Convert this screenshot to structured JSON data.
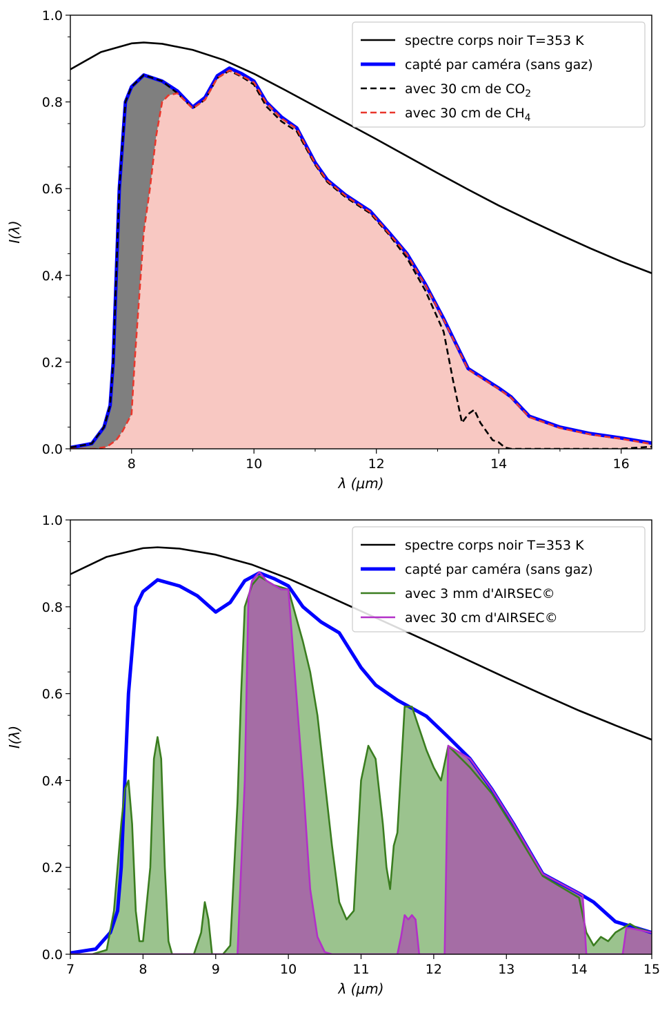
{
  "chart_data": [
    {
      "type": "area",
      "xlabel": "λ (μm)",
      "ylabel": "I(λ)",
      "xlim": [
        7,
        16.5
      ],
      "ylim": [
        0,
        1.0
      ],
      "xticks": [
        8,
        10,
        12,
        14,
        16
      ],
      "yticks": [
        0.0,
        0.2,
        0.4,
        0.6,
        0.8,
        1.0
      ],
      "legend_position": "top-right",
      "series": [
        {
          "name": "spectre corps noir T=353 K",
          "kind": "line",
          "color": "#000000",
          "dash": "solid",
          "x": [
            7.0,
            7.5,
            8.0,
            8.2,
            8.5,
            9.0,
            9.5,
            10.0,
            10.5,
            11.0,
            11.5,
            12.0,
            12.5,
            13.0,
            13.5,
            14.0,
            14.5,
            15.0,
            15.5,
            16.0,
            16.5
          ],
          "y": [
            0.875,
            0.915,
            0.935,
            0.937,
            0.934,
            0.92,
            0.897,
            0.865,
            0.828,
            0.79,
            0.752,
            0.714,
            0.675,
            0.636,
            0.598,
            0.561,
            0.527,
            0.494,
            0.462,
            0.432,
            0.405
          ]
        },
        {
          "name": "capté par caméra (sans gaz)",
          "kind": "line",
          "color": "#0000ff",
          "dash": "solid",
          "x": [
            7.0,
            7.35,
            7.55,
            7.65,
            7.7,
            7.75,
            7.8,
            7.9,
            8.0,
            8.2,
            8.5,
            8.75,
            9.0,
            9.2,
            9.4,
            9.6,
            9.8,
            10.0,
            10.2,
            10.45,
            10.7,
            11.0,
            11.2,
            11.5,
            11.9,
            12.2,
            12.5,
            12.8,
            13.1,
            13.5,
            14.0,
            14.2,
            14.5,
            15.0,
            15.5,
            16.0,
            16.5
          ],
          "y": [
            0.003,
            0.012,
            0.05,
            0.1,
            0.2,
            0.4,
            0.6,
            0.8,
            0.835,
            0.862,
            0.848,
            0.825,
            0.788,
            0.81,
            0.86,
            0.878,
            0.865,
            0.848,
            0.8,
            0.765,
            0.74,
            0.66,
            0.62,
            0.585,
            0.548,
            0.5,
            0.45,
            0.38,
            0.3,
            0.185,
            0.14,
            0.12,
            0.075,
            0.05,
            0.035,
            0.025,
            0.013
          ]
        },
        {
          "name": "avec 30 cm de CO₂",
          "kind": "line+fill",
          "color": "#000000",
          "dash": "dashed",
          "fill": "#7f7f7f",
          "x": [
            7.0,
            7.35,
            7.55,
            7.65,
            7.7,
            7.75,
            7.8,
            7.9,
            8.0,
            8.2,
            8.5,
            8.75,
            9.0,
            9.2,
            9.4,
            9.6,
            9.8,
            10.0,
            10.2,
            10.45,
            10.7,
            11.0,
            11.2,
            11.5,
            11.9,
            12.2,
            12.5,
            12.8,
            13.1,
            13.25,
            13.4,
            13.5,
            13.6,
            13.7,
            13.8,
            13.9,
            14.0,
            14.1,
            14.2,
            14.5,
            15.0,
            15.5,
            16.0,
            16.5
          ],
          "y": [
            0.003,
            0.012,
            0.05,
            0.1,
            0.2,
            0.4,
            0.6,
            0.8,
            0.835,
            0.862,
            0.848,
            0.82,
            0.785,
            0.805,
            0.855,
            0.872,
            0.858,
            0.84,
            0.79,
            0.755,
            0.732,
            0.655,
            0.615,
            0.58,
            0.543,
            0.495,
            0.44,
            0.365,
            0.27,
            0.16,
            0.06,
            0.08,
            0.09,
            0.06,
            0.04,
            0.02,
            0.015,
            0.003,
            0.0,
            0.0,
            0.0,
            0.0,
            0.0,
            0.005
          ]
        },
        {
          "name": "avec 30 cm de CH₄",
          "kind": "line+fill",
          "color": "#e8372c",
          "dash": "dashed",
          "fill": "#f8c8c2",
          "x": [
            7.0,
            7.4,
            7.6,
            7.75,
            7.85,
            8.0,
            8.05,
            8.1,
            8.15,
            8.2,
            8.3,
            8.4,
            8.5,
            8.6,
            8.75,
            9.0,
            9.2,
            9.4,
            9.6,
            9.8,
            10.0,
            10.2,
            10.45,
            10.7,
            11.0,
            11.2,
            11.5,
            11.9,
            12.2,
            12.5,
            12.8,
            13.1,
            13.5,
            14.0,
            14.2,
            14.5,
            15.0,
            15.5,
            16.0,
            16.5
          ],
          "y": [
            0.0,
            0.0,
            0.005,
            0.02,
            0.04,
            0.08,
            0.2,
            0.3,
            0.4,
            0.5,
            0.6,
            0.72,
            0.8,
            0.815,
            0.82,
            0.785,
            0.805,
            0.855,
            0.873,
            0.86,
            0.845,
            0.798,
            0.762,
            0.738,
            0.658,
            0.618,
            0.583,
            0.546,
            0.498,
            0.448,
            0.378,
            0.298,
            0.183,
            0.138,
            0.118,
            0.073,
            0.048,
            0.033,
            0.023,
            0.011
          ]
        }
      ],
      "legend": [
        "spectre corps noir T=353 K",
        "capté par caméra (sans gaz)",
        "avec 30 cm de CO₂",
        "avec 30 cm de CH₄"
      ]
    },
    {
      "type": "area",
      "xlabel": "λ (μm)",
      "ylabel": "I(λ)",
      "xlim": [
        7,
        15
      ],
      "ylim": [
        0,
        1.0
      ],
      "xticks": [
        7,
        8,
        9,
        10,
        11,
        12,
        13,
        14,
        15
      ],
      "yticks": [
        0.0,
        0.2,
        0.4,
        0.6,
        0.8,
        1.0
      ],
      "legend_position": "top-right",
      "series": [
        {
          "name": "spectre corps noir T=353 K",
          "kind": "line",
          "color": "#000000",
          "dash": "solid",
          "x": [
            7.0,
            7.5,
            8.0,
            8.2,
            8.5,
            9.0,
            9.5,
            10.0,
            10.5,
            11.0,
            11.5,
            12.0,
            12.5,
            13.0,
            13.5,
            14.0,
            14.5,
            15.0
          ],
          "y": [
            0.875,
            0.915,
            0.935,
            0.937,
            0.934,
            0.92,
            0.897,
            0.865,
            0.828,
            0.79,
            0.752,
            0.714,
            0.675,
            0.636,
            0.598,
            0.561,
            0.527,
            0.494
          ]
        },
        {
          "name": "capté par caméra (sans gaz)",
          "kind": "line",
          "color": "#0000ff",
          "dash": "solid",
          "x": [
            7.0,
            7.35,
            7.55,
            7.65,
            7.7,
            7.75,
            7.8,
            7.9,
            8.0,
            8.2,
            8.5,
            8.75,
            9.0,
            9.2,
            9.4,
            9.6,
            9.8,
            10.0,
            10.2,
            10.45,
            10.7,
            11.0,
            11.2,
            11.5,
            11.9,
            12.2,
            12.5,
            12.8,
            13.1,
            13.5,
            14.0,
            14.2,
            14.5,
            15.0
          ],
          "y": [
            0.003,
            0.012,
            0.05,
            0.1,
            0.2,
            0.4,
            0.6,
            0.8,
            0.835,
            0.862,
            0.848,
            0.825,
            0.788,
            0.81,
            0.86,
            0.878,
            0.865,
            0.848,
            0.8,
            0.765,
            0.74,
            0.66,
            0.62,
            0.585,
            0.548,
            0.5,
            0.45,
            0.38,
            0.3,
            0.185,
            0.14,
            0.12,
            0.075,
            0.05
          ]
        },
        {
          "name": "avec 3 mm d'AIRSEC©",
          "kind": "line+fill",
          "color": "#3a7d1f",
          "dash": "solid",
          "fill": "#9bc38e",
          "x": [
            7.0,
            7.3,
            7.5,
            7.6,
            7.7,
            7.75,
            7.8,
            7.85,
            7.9,
            7.95,
            8.0,
            8.1,
            8.15,
            8.2,
            8.25,
            8.3,
            8.35,
            8.4,
            8.5,
            8.7,
            8.8,
            8.85,
            8.9,
            8.95,
            9.0,
            9.1,
            9.2,
            9.3,
            9.35,
            9.4,
            9.5,
            9.6,
            9.7,
            9.8,
            9.9,
            10.0,
            10.1,
            10.2,
            10.3,
            10.4,
            10.5,
            10.6,
            10.7,
            10.8,
            10.9,
            11.0,
            11.1,
            11.2,
            11.3,
            11.35,
            11.4,
            11.45,
            11.5,
            11.6,
            11.7,
            11.8,
            11.9,
            12.0,
            12.1,
            12.2,
            12.5,
            12.8,
            13.1,
            13.5,
            14.0,
            14.1,
            14.2,
            14.3,
            14.4,
            14.5,
            14.6,
            14.7,
            14.8,
            15.0
          ],
          "y": [
            0.0,
            0.0,
            0.01,
            0.1,
            0.3,
            0.38,
            0.4,
            0.3,
            0.1,
            0.03,
            0.03,
            0.2,
            0.45,
            0.5,
            0.45,
            0.2,
            0.03,
            0.0,
            0.0,
            0.0,
            0.05,
            0.12,
            0.08,
            0.0,
            0.0,
            0.0,
            0.02,
            0.35,
            0.6,
            0.8,
            0.85,
            0.87,
            0.86,
            0.85,
            0.845,
            0.84,
            0.78,
            0.72,
            0.65,
            0.55,
            0.4,
            0.25,
            0.12,
            0.08,
            0.1,
            0.4,
            0.48,
            0.45,
            0.3,
            0.2,
            0.15,
            0.25,
            0.28,
            0.57,
            0.57,
            0.52,
            0.47,
            0.43,
            0.4,
            0.48,
            0.43,
            0.37,
            0.29,
            0.18,
            0.13,
            0.05,
            0.02,
            0.04,
            0.03,
            0.05,
            0.06,
            0.07,
            0.06,
            0.05
          ]
        },
        {
          "name": "avec 30 cm d'AIRSEC©",
          "kind": "line+fill",
          "color": "#b230c8",
          "dash": "solid",
          "fill": "#a56da5",
          "x": [
            7.0,
            9.3,
            9.4,
            9.45,
            9.5,
            9.6,
            9.7,
            9.8,
            9.9,
            10.0,
            10.1,
            10.2,
            10.3,
            10.4,
            10.5,
            10.6,
            10.7,
            11.5,
            11.55,
            11.6,
            11.65,
            11.7,
            11.75,
            11.8,
            11.85,
            12.15,
            12.2,
            12.3,
            12.5,
            12.8,
            13.1,
            13.5,
            14.0,
            14.05,
            14.1,
            14.6,
            14.65,
            14.7,
            15.0
          ],
          "y": [
            0.0,
            0.0,
            0.4,
            0.82,
            0.86,
            0.88,
            0.86,
            0.85,
            0.84,
            0.84,
            0.62,
            0.4,
            0.15,
            0.04,
            0.005,
            0.0,
            0.0,
            0.0,
            0.04,
            0.09,
            0.08,
            0.09,
            0.08,
            0.0,
            0.0,
            0.0,
            0.48,
            0.47,
            0.45,
            0.38,
            0.3,
            0.185,
            0.14,
            0.135,
            0.0,
            0.0,
            0.06,
            0.06,
            0.05
          ]
        }
      ],
      "legend": [
        "spectre corps noir T=353 K",
        "capté par caméra (sans gaz)",
        "avec 3 mm d'AIRSEC©",
        "avec 30 cm d'AIRSEC©"
      ]
    }
  ]
}
